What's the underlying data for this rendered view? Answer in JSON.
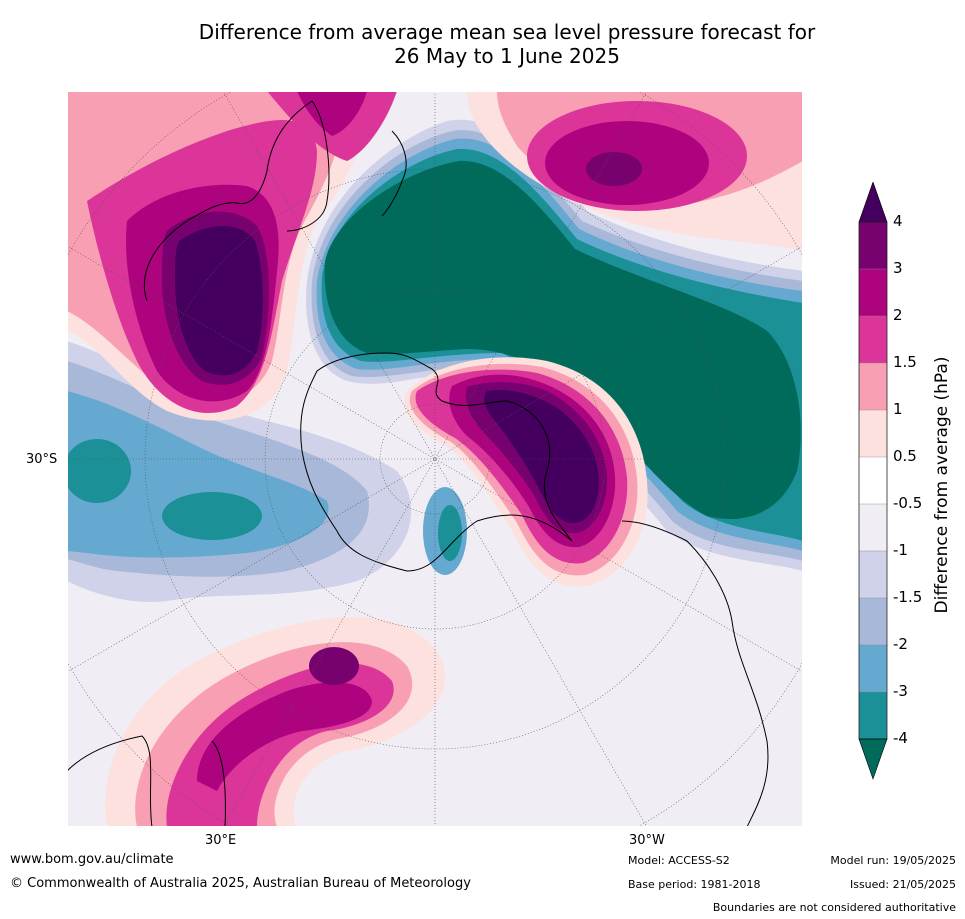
{
  "title": {
    "line1": "Difference from average mean sea level pressure forecast for",
    "line2": "26 May to 1 June 2025"
  },
  "map": {
    "projection": "south polar stereographic",
    "lat_label": "30°S",
    "lon_labels": [
      "30°E",
      "30°W"
    ],
    "colors": {
      "neg4": "#1b9096",
      "neg_extreme": "#006b5a",
      "neg3": "#65a9d1",
      "neg2": "#a7b8d8",
      "neg15": "#cfd2e8",
      "neg1": "#f0edf5",
      "zero": "#ffffff",
      "pos05": "#fde1de",
      "pos1": "#f99fb4",
      "pos15": "#dc359a",
      "pos2": "#ad037f",
      "pos3": "#77026f",
      "pos_extreme": "#45005f"
    },
    "features": [
      {
        "name": "positive-anomaly-australia",
        "sign": "positive",
        "peak_band": ">4"
      },
      {
        "name": "positive-anomaly-south-pacific",
        "sign": "positive",
        "peak_band": "3 to 4"
      },
      {
        "name": "negative-anomaly-pacific-southern-ocean",
        "sign": "negative",
        "peak_band": "<-4"
      },
      {
        "name": "positive-anomaly-antarctic-peninsula",
        "sign": "positive",
        "peak_band": ">4"
      },
      {
        "name": "positive-anomaly-south-atlantic-africa",
        "sign": "positive",
        "peak_band": "3 to 4"
      },
      {
        "name": "negative-anomaly-indian-ocean",
        "sign": "negative",
        "peak_band": "-3 to -4"
      }
    ]
  },
  "colorbar": {
    "label": "Difference from average (hPa)",
    "ticks": [
      "4",
      "3",
      "2",
      "1.5",
      "1",
      "0.5",
      "-0.5",
      "-1",
      "-1.5",
      "-2",
      "-3",
      "-4"
    ],
    "colors": [
      "#45005f",
      "#77026f",
      "#ad037f",
      "#dc359a",
      "#f99fb4",
      "#fde1de",
      "#ffffff",
      "#f0edf5",
      "#cfd2e8",
      "#a7b8d8",
      "#65a9d1",
      "#1b9096",
      "#006b5a"
    ]
  },
  "footer": {
    "url": "www.bom.gov.au/climate",
    "copyright": "© Commonwealth of Australia 2025, Australian Bureau of Meteorology",
    "model": "Model: ACCESS-S2",
    "base_period": "Base period: 1981-2018",
    "model_run": "Model run: 19/05/2025",
    "issued": "Issued: 21/05/2025",
    "disclaimer": "Boundaries are not considered authoritative"
  }
}
